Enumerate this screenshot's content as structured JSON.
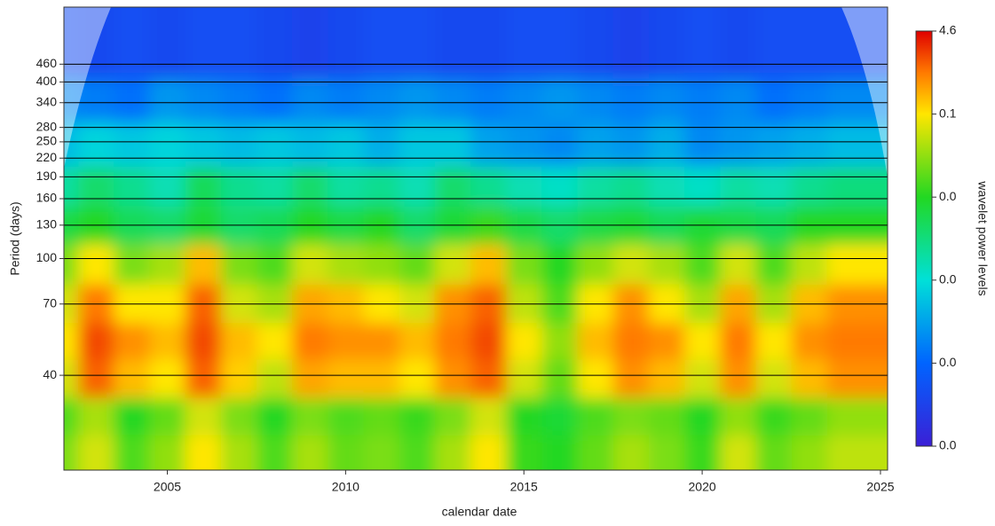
{
  "chart_data": {
    "type": "heatmap",
    "x_label": "calendar date",
    "y_label": "Period (days)",
    "colorbar_label": "wavelet power levels",
    "xlim": [
      2002.1,
      2025.2
    ],
    "xticks": [
      2005,
      2010,
      2015,
      2020,
      2025
    ],
    "ylim": [
      19,
      720
    ],
    "y_log": true,
    "yticks": [
      40,
      70,
      100,
      130,
      160,
      190,
      220,
      250,
      280,
      340,
      400,
      460
    ],
    "grid": true,
    "zlim": [
      0,
      5
    ],
    "zticks": [
      {
        "value": 0,
        "label": "0.0"
      },
      {
        "value": 1,
        "label": "0.0"
      },
      {
        "value": 2,
        "label": "0.0"
      },
      {
        "value": 3,
        "label": "0.0"
      },
      {
        "value": 4,
        "label": "0.1"
      },
      {
        "value": 5,
        "label": "4.6"
      }
    ],
    "colormap": [
      {
        "level": 0,
        "color": "#3b1fd6"
      },
      {
        "level": 1,
        "color": "#0064ff"
      },
      {
        "level": 2,
        "color": "#00e0d8"
      },
      {
        "level": 3,
        "color": "#22d822"
      },
      {
        "level": 4,
        "color": "#ffe600"
      },
      {
        "level": 4.5,
        "color": "#ff7a00"
      },
      {
        "level": 5,
        "color": "#e00000"
      }
    ],
    "x": [
      2002.5,
      2003.5,
      2004.5,
      2005.5,
      2006.5,
      2007.5,
      2008.5,
      2009.5,
      2010.5,
      2011.5,
      2012.5,
      2013.5,
      2014.5,
      2015.5,
      2016.5,
      2017.5,
      2018.5,
      2019.5,
      2020.5,
      2021.5,
      2022.5,
      2023.5,
      2024.5
    ],
    "periods": [
      25,
      33,
      45,
      60,
      80,
      110,
      150,
      200,
      280,
      400,
      560
    ],
    "z": [
      [
        3.4,
        3.8,
        3.2,
        3.5,
        4.0,
        3.6,
        3.2,
        3.6,
        3.3,
        3.4,
        3.2,
        3.6,
        4.0,
        3.1,
        3.0,
        3.3,
        3.6,
        3.4,
        3.1,
        3.8,
        3.3,
        3.5,
        3.7
      ],
      [
        3.2,
        3.6,
        3.0,
        3.3,
        3.8,
        3.4,
        3.0,
        3.4,
        3.2,
        3.3,
        3.1,
        3.4,
        3.8,
        3.0,
        2.9,
        3.2,
        3.4,
        3.3,
        3.0,
        3.5,
        3.1,
        3.3,
        3.5
      ],
      [
        3.8,
        4.6,
        4.2,
        4.0,
        4.6,
        4.1,
        3.7,
        4.3,
        4.2,
        4.2,
        4.0,
        4.4,
        4.6,
        3.8,
        3.3,
        4.0,
        4.4,
        4.2,
        3.8,
        4.4,
        3.8,
        4.2,
        4.4
      ],
      [
        4.0,
        4.7,
        4.4,
        4.2,
        4.7,
        4.2,
        4.0,
        4.5,
        4.4,
        4.4,
        4.2,
        4.5,
        4.7,
        4.0,
        3.5,
        4.2,
        4.5,
        4.4,
        4.0,
        4.5,
        4.0,
        4.4,
        4.5
      ],
      [
        3.8,
        4.5,
        4.0,
        4.0,
        4.6,
        3.8,
        3.6,
        4.3,
        4.2,
        4.0,
        3.8,
        4.4,
        4.6,
        3.7,
        3.2,
        4.0,
        4.4,
        4.0,
        3.6,
        4.3,
        3.6,
        4.2,
        4.4
      ],
      [
        3.4,
        4.0,
        3.4,
        3.6,
        4.2,
        3.4,
        3.2,
        3.8,
        3.6,
        3.5,
        3.3,
        3.8,
        4.2,
        3.4,
        3.0,
        3.5,
        3.8,
        3.6,
        3.2,
        3.8,
        3.2,
        3.7,
        4.0
      ],
      [
        2.8,
        3.0,
        2.7,
        2.6,
        2.9,
        2.6,
        2.7,
        3.0,
        2.8,
        3.0,
        2.6,
        2.9,
        3.1,
        2.8,
        2.6,
        2.8,
        2.9,
        2.7,
        2.9,
        2.8,
        2.7,
        3.0,
        3.0
      ],
      [
        2.3,
        2.6,
        2.4,
        2.2,
        2.7,
        2.4,
        2.3,
        2.6,
        2.3,
        2.4,
        2.2,
        2.6,
        2.4,
        2.2,
        2.1,
        2.3,
        2.4,
        2.2,
        2.1,
        2.3,
        2.2,
        2.4,
        2.5
      ],
      [
        1.7,
        1.9,
        1.8,
        1.9,
        1.8,
        1.7,
        1.8,
        1.7,
        1.8,
        1.6,
        1.8,
        1.8,
        1.5,
        1.4,
        1.3,
        1.5,
        1.4,
        1.6,
        1.3,
        1.4,
        1.5,
        1.6,
        1.7
      ],
      [
        1.3,
        1.2,
        1.1,
        1.4,
        1.3,
        1.2,
        1.1,
        1.3,
        1.2,
        1.3,
        1.4,
        1.3,
        1.2,
        1.3,
        1.4,
        1.3,
        1.2,
        1.3,
        1.2,
        1.3,
        1.1,
        1.2,
        1.3
      ],
      [
        0.7,
        0.6,
        0.7,
        0.6,
        0.7,
        0.7,
        0.6,
        0.5,
        0.6,
        0.7,
        0.7,
        0.6,
        0.6,
        0.7,
        0.7,
        0.6,
        0.5,
        0.6,
        0.7,
        0.6,
        0.7,
        0.7,
        0.7
      ]
    ]
  }
}
